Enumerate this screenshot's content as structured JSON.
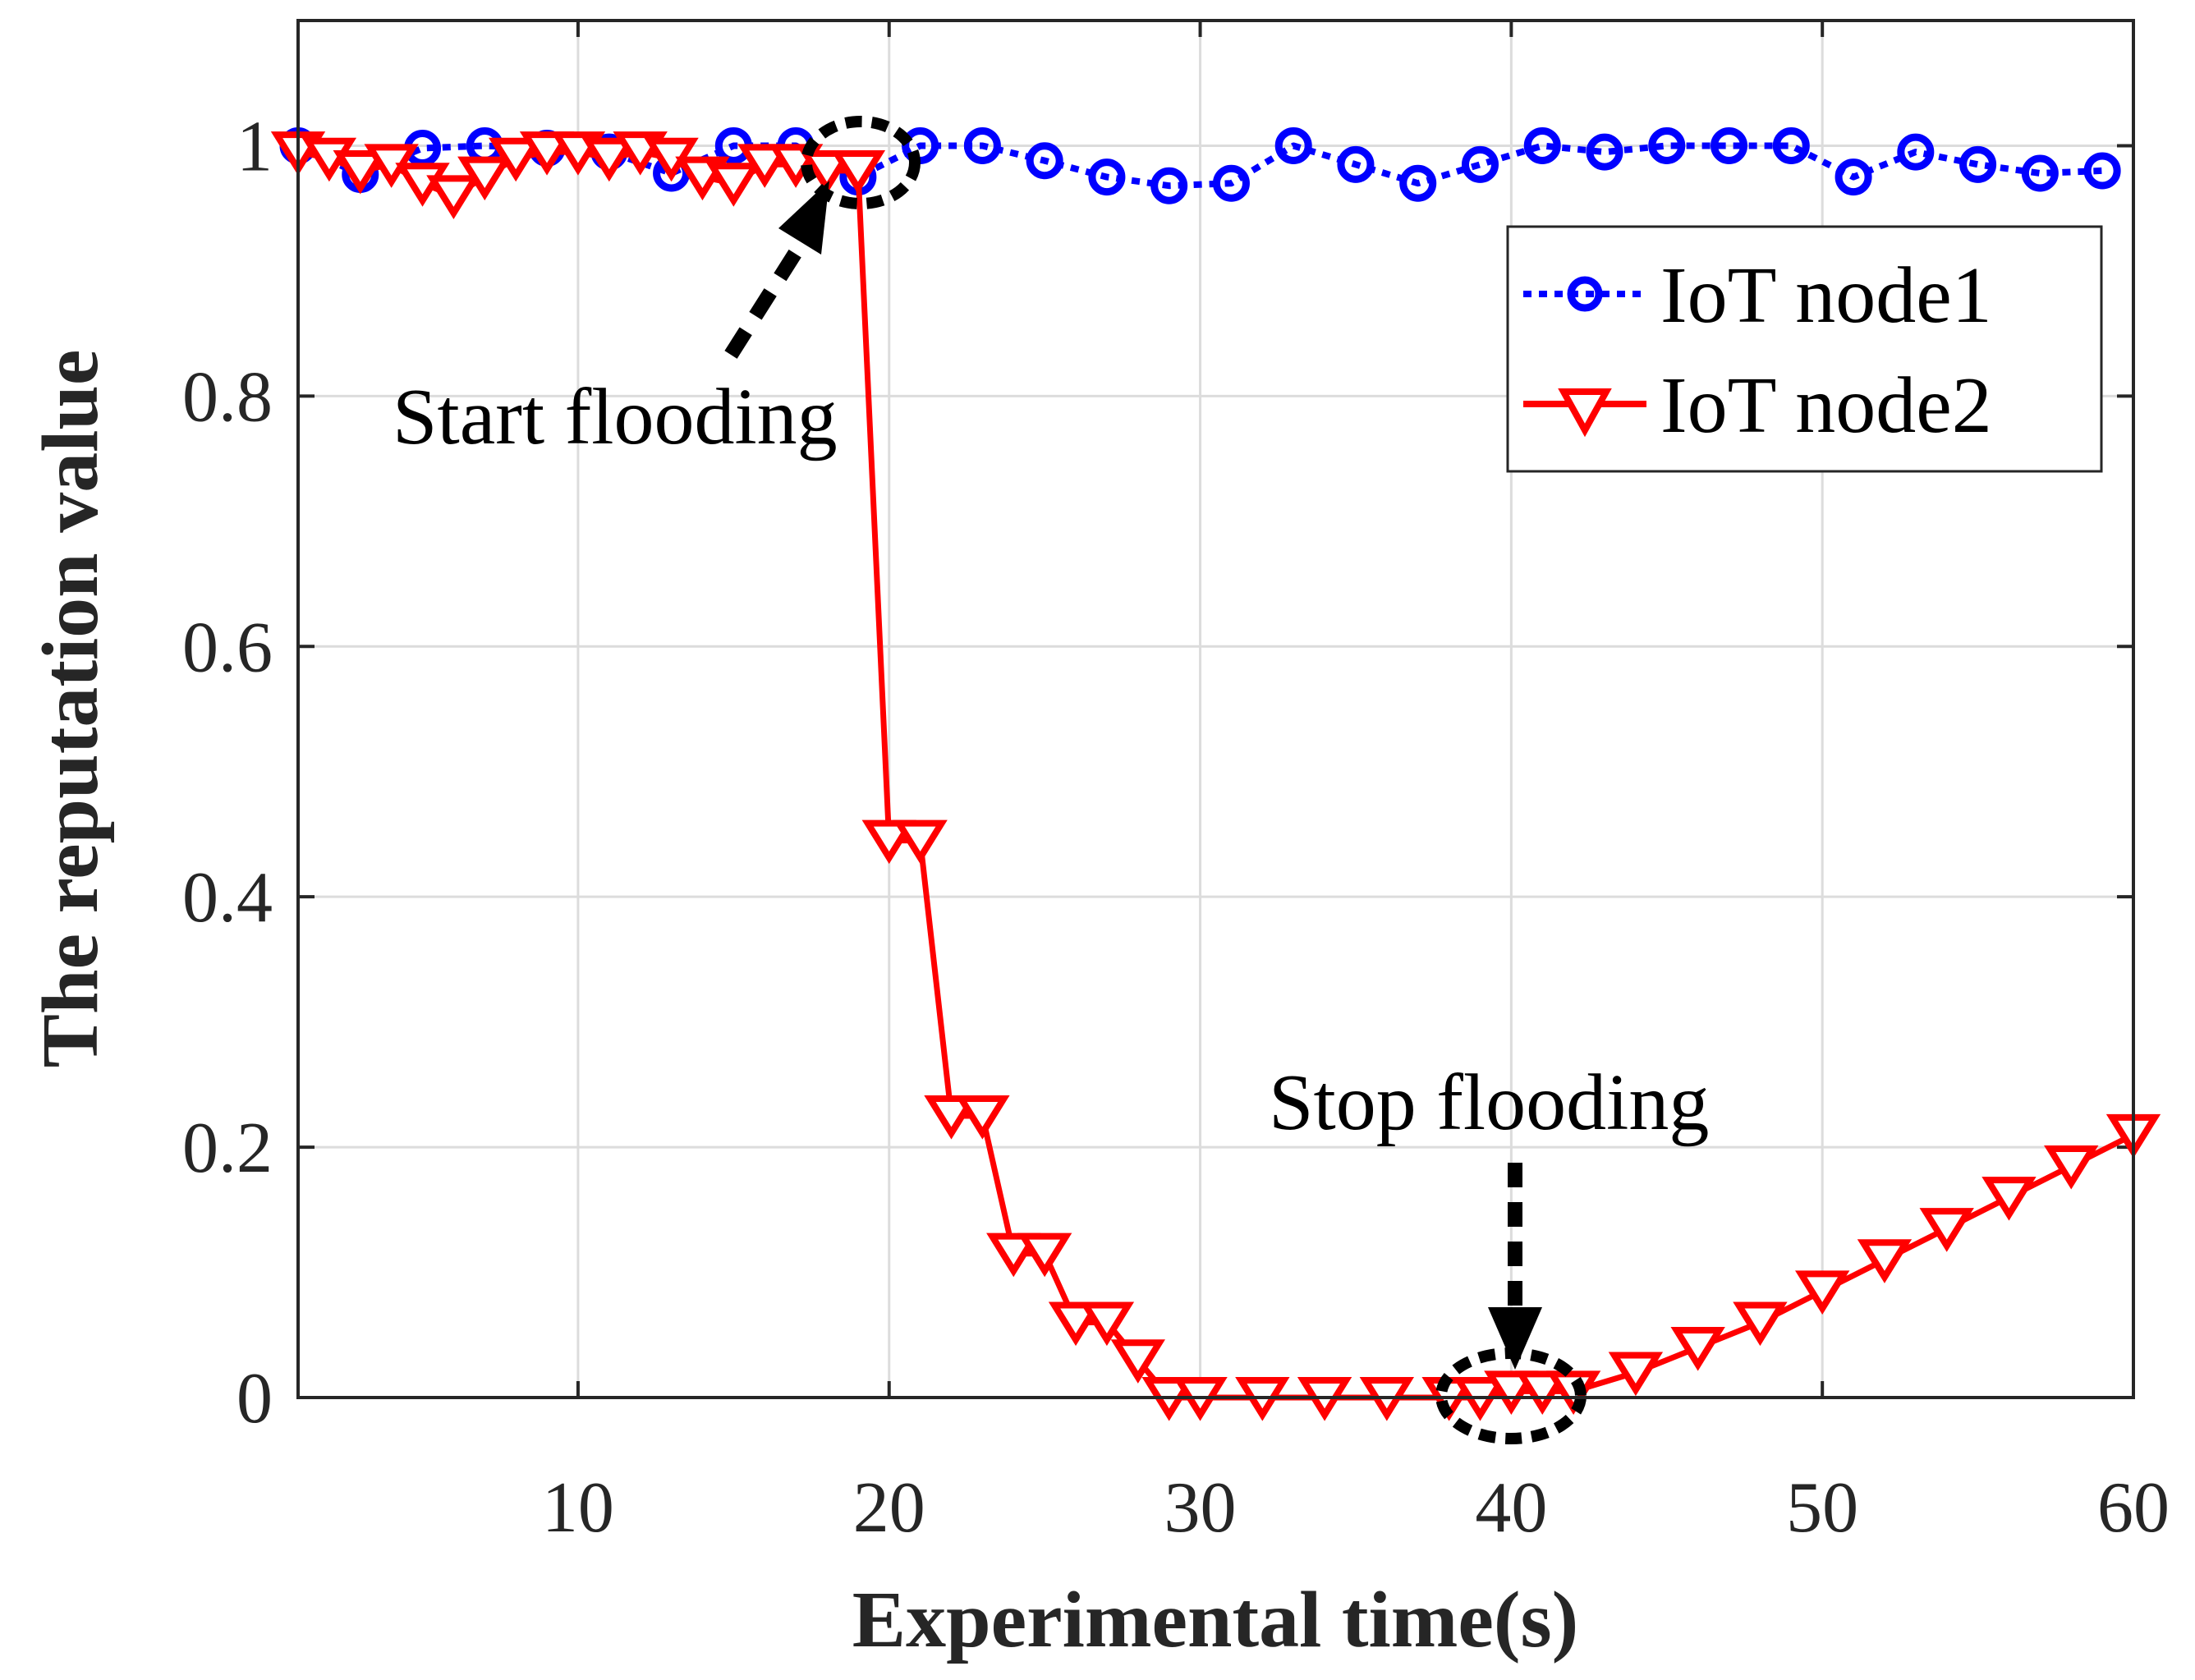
{
  "chart_data": {
    "type": "line",
    "title": "",
    "xlabel": "Experimental time(s)",
    "ylabel": "The reputation value",
    "xlim": [
      1,
      60
    ],
    "ylim": [
      0,
      1.1
    ],
    "xticks": [
      10,
      20,
      30,
      40,
      50,
      60
    ],
    "xtick_labels": [
      "10",
      "20",
      "30",
      "40",
      "50",
      "60"
    ],
    "yticks": [
      0,
      0.2,
      0.4,
      0.6,
      0.8,
      1
    ],
    "ytick_labels": [
      "0",
      "0.2",
      "0.4",
      "0.6",
      "0.8",
      "1"
    ],
    "grid": true,
    "legend_position": "top-right",
    "series": [
      {
        "name": "IoT node1",
        "color": "#0000ff",
        "line_style": "dotted",
        "marker": "circle",
        "x": [
          1,
          3,
          5,
          7,
          9,
          11,
          13,
          15,
          17,
          19,
          21,
          23,
          25,
          27,
          29,
          31,
          33,
          35,
          37,
          39,
          41,
          43,
          45,
          47,
          49,
          51,
          53,
          55,
          57,
          59
        ],
        "y": [
          1.0,
          0.977,
          0.998,
          1.0,
          0.998,
          0.995,
          0.978,
          1.0,
          1.0,
          0.975,
          1.0,
          1.0,
          0.988,
          0.975,
          0.968,
          0.97,
          1.0,
          0.985,
          0.97,
          0.985,
          1.0,
          0.995,
          1.0,
          1.0,
          1.0,
          0.975,
          0.995,
          0.985,
          0.978,
          0.98
        ]
      },
      {
        "name": "IoT node2",
        "color": "#ff0000",
        "line_style": "solid",
        "marker": "triangle-down",
        "x": [
          1,
          2,
          3,
          4,
          5,
          6,
          7,
          8,
          9,
          10,
          11,
          12,
          13,
          14,
          15,
          16,
          17,
          18,
          19,
          20,
          21,
          22,
          23,
          24,
          25,
          26,
          27,
          28,
          29,
          30,
          32,
          34,
          36,
          38,
          39,
          40,
          41,
          42,
          44,
          46,
          48,
          50,
          52,
          54,
          56,
          58,
          60
        ],
        "y": [
          0.995,
          0.99,
          0.98,
          0.985,
          0.97,
          0.96,
          0.975,
          0.99,
          0.995,
          0.995,
          0.99,
          0.995,
          0.99,
          0.975,
          0.97,
          0.985,
          0.985,
          0.98,
          0.98,
          0.445,
          0.445,
          0.225,
          0.225,
          0.115,
          0.115,
          0.06,
          0.06,
          0.03,
          0.0,
          0.0,
          0.0,
          0.0,
          0.0,
          0.0,
          0.0,
          0.005,
          0.005,
          0.005,
          0.02,
          0.04,
          0.06,
          0.085,
          0.11,
          0.135,
          0.16,
          0.185,
          0.21
        ]
      }
    ],
    "annotations": [
      {
        "text": "Start flooding"
      },
      {
        "text": "Stop flooding"
      }
    ]
  }
}
